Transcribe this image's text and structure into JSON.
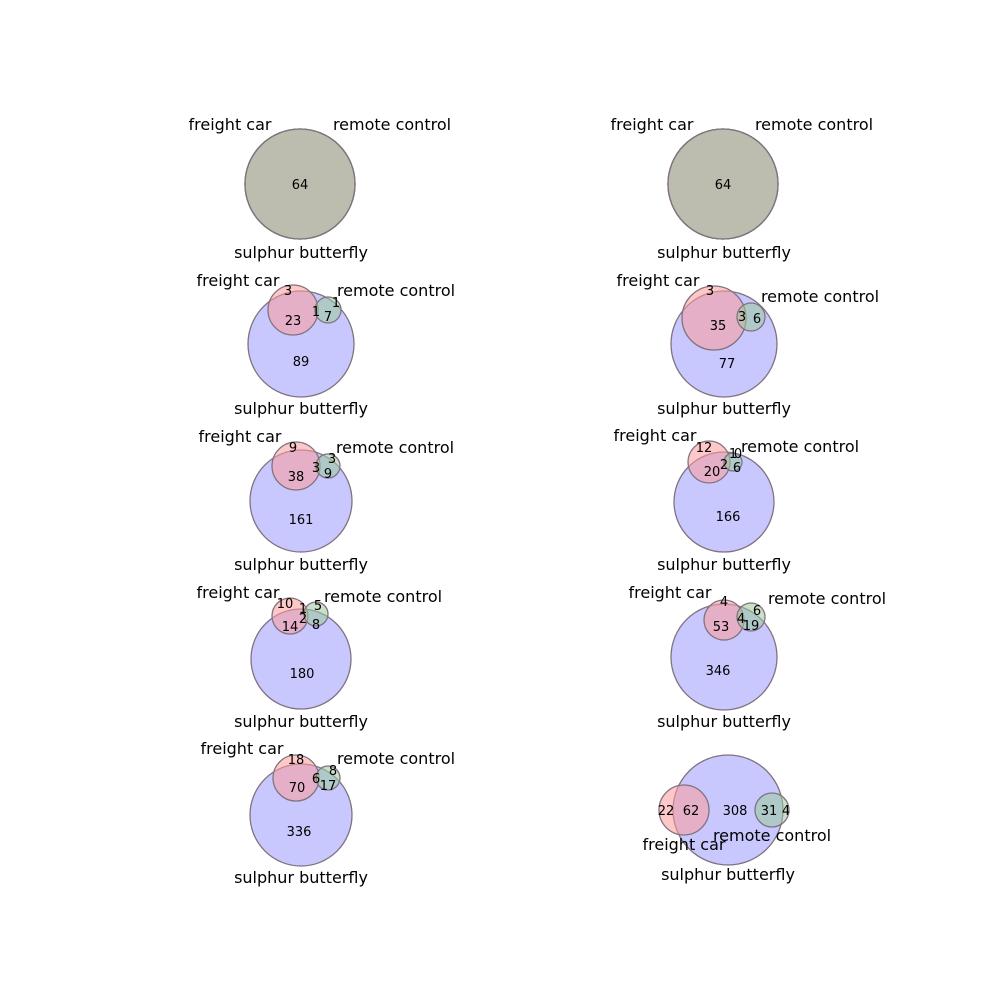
{
  "colors": {
    "freight_car": "#ff9a9a",
    "remote_control": "#9bc89b",
    "sulphur_butterfly": "#9a9aff",
    "all_three_overlap": "#bfaec3",
    "car_butterfly_overlap": "#de9ade",
    "remote_butterfly_overlap": "#a0bbda",
    "car_remote_overlap": "#c3b493",
    "outline": "#80737f"
  },
  "chart_data": [
    {
      "type": "venn3",
      "set_labels": [
        "freight car",
        "remote control",
        "sulphur butterfly"
      ],
      "regions": {
        "car_only": 0,
        "remote_only": 0,
        "car_remote": 0,
        "butterfly_only": 0,
        "car_butterfly": 0,
        "remote_butterfly": 0,
        "all_three": 64
      },
      "shown_counts": [
        "64"
      ]
    },
    {
      "type": "venn3",
      "set_labels": [
        "freight car",
        "remote control",
        "sulphur butterfly"
      ],
      "regions": {
        "car_only": 0,
        "remote_only": 0,
        "car_remote": 0,
        "butterfly_only": 0,
        "car_butterfly": 0,
        "remote_butterfly": 0,
        "all_three": 64
      },
      "shown_counts": [
        "64"
      ]
    },
    {
      "type": "venn3",
      "set_labels": [
        "freight car",
        "remote control",
        "sulphur butterfly"
      ],
      "regions": {
        "car_only": 3,
        "remote_only": 1,
        "car_remote": 0,
        "butterfly_only": 89,
        "car_butterfly": 23,
        "remote_butterfly": 7,
        "all_three": 1
      },
      "shown_counts": [
        "3",
        "1",
        "1",
        "23",
        "7",
        "89"
      ]
    },
    {
      "type": "venn3",
      "set_labels": [
        "freight car",
        "remote control",
        "sulphur butterfly"
      ],
      "regions": {
        "car_only": 3,
        "remote_only": 0,
        "car_remote": 0,
        "butterfly_only": 77,
        "car_butterfly": 35,
        "remote_butterfly": 6,
        "all_three": 3
      },
      "shown_counts": [
        "3",
        "3",
        "35",
        "6",
        "77"
      ]
    },
    {
      "type": "venn3",
      "set_labels": [
        "freight car",
        "remote control",
        "sulphur butterfly"
      ],
      "regions": {
        "car_only": 9,
        "remote_only": 3,
        "car_remote": 0,
        "butterfly_only": 161,
        "car_butterfly": 38,
        "remote_butterfly": 9,
        "all_three": 3
      },
      "shown_counts": [
        "9",
        "3",
        "3",
        "38",
        "9",
        "161"
      ]
    },
    {
      "type": "venn3",
      "set_labels": [
        "freight car",
        "remote control",
        "sulphur butterfly"
      ],
      "regions": {
        "car_only": 12,
        "remote_only": 0,
        "car_remote": 1,
        "butterfly_only": 166,
        "car_butterfly": 20,
        "remote_butterfly": 6,
        "all_three": 2
      },
      "shown_counts": [
        "12",
        "1",
        "0",
        "2",
        "20",
        "6",
        "166"
      ]
    },
    {
      "type": "venn3",
      "set_labels": [
        "freight car",
        "remote control",
        "sulphur butterfly"
      ],
      "regions": {
        "car_only": 10,
        "remote_only": 5,
        "car_remote": 1,
        "butterfly_only": 180,
        "car_butterfly": 14,
        "remote_butterfly": 8,
        "all_three": 2
      },
      "shown_counts": [
        "10",
        "1",
        "5",
        "2",
        "14",
        "8",
        "180"
      ]
    },
    {
      "type": "venn3",
      "set_labels": [
        "freight car",
        "remote control",
        "sulphur butterfly"
      ],
      "regions": {
        "car_only": 4,
        "remote_only": 6,
        "car_remote": 0,
        "butterfly_only": 346,
        "car_butterfly": 53,
        "remote_butterfly": 19,
        "all_three": 4
      },
      "shown_counts": [
        "4",
        "6",
        "4",
        "53",
        "19",
        "346"
      ]
    },
    {
      "type": "venn3",
      "set_labels": [
        "freight car",
        "remote control",
        "sulphur butterfly"
      ],
      "regions": {
        "car_only": 18,
        "remote_only": 8,
        "car_remote": 0,
        "butterfly_only": 336,
        "car_butterfly": 70,
        "remote_butterfly": 17,
        "all_three": 6
      },
      "shown_counts": [
        "18",
        "8",
        "6",
        "70",
        "17",
        "336"
      ]
    },
    {
      "type": "venn3",
      "set_labels": [
        "freight car",
        "remote control",
        "sulphur butterfly"
      ],
      "regions": {
        "car_only": 22,
        "remote_only": 4,
        "car_remote": 0,
        "butterfly_only": 308,
        "car_butterfly": 62,
        "remote_butterfly": 31,
        "all_three": 0
      },
      "shown_counts": [
        "22",
        "62",
        "308",
        "31",
        "4"
      ]
    }
  ]
}
